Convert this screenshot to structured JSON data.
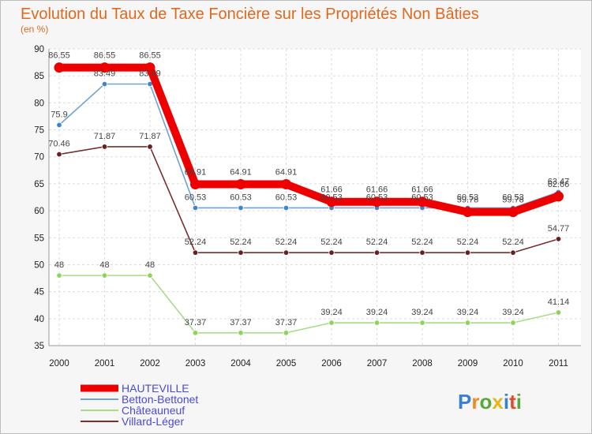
{
  "chart_data": {
    "type": "line",
    "title": "Evolution du Taux de Taxe Foncière sur les Propriétés Non Bâties",
    "subtitle": "(en %)",
    "x": [
      "2000",
      "2001",
      "2002",
      "2003",
      "2004",
      "2005",
      "2006",
      "2007",
      "2008",
      "2009",
      "2010",
      "2011"
    ],
    "ylim": [
      35,
      90
    ],
    "yticks": [
      35,
      40,
      45,
      50,
      55,
      60,
      65,
      70,
      75,
      80,
      85,
      90
    ],
    "grid": true,
    "legend_position": "bottom-left",
    "series": [
      {
        "name": "HAUTEVILLE",
        "color": "#ee0000",
        "marker_color": "#ee0000",
        "emphasis": "thick",
        "values": [
          86.55,
          86.55,
          86.55,
          64.91,
          64.91,
          64.91,
          61.66,
          61.66,
          61.66,
          59.78,
          59.78,
          62.66
        ],
        "labels": [
          "86.55",
          "86.55",
          "86.55",
          "64.91",
          "64.91",
          "64.91",
          "61.66",
          "61.66",
          "61.66",
          "59.78",
          "59.78",
          "62.66"
        ]
      },
      {
        "name": "Betton-Bettonet",
        "color": "#6fa3d2",
        "marker_color": "#3f86c8",
        "emphasis": "normal",
        "values": [
          75.9,
          83.49,
          83.49,
          60.53,
          60.53,
          60.53,
          60.53,
          60.53,
          60.53,
          60.53,
          60.53,
          63.47
        ],
        "labels": [
          "75.9",
          "83.49",
          "83.49",
          "60.53",
          "60.53",
          "60.53",
          "60.53",
          "60.53",
          "60.53",
          "60.53",
          "60.53",
          "63.47"
        ]
      },
      {
        "name": "Châteauneuf",
        "color": "#a8dc88",
        "marker_color": "#8fd45a",
        "emphasis": "normal",
        "values": [
          48,
          48,
          48,
          37.37,
          37.37,
          37.37,
          39.24,
          39.24,
          39.24,
          39.24,
          39.24,
          41.14
        ],
        "labels": [
          "48",
          "48",
          "48",
          "37.37",
          "37.37",
          "37.37",
          "39.24",
          "39.24",
          "39.24",
          "39.24",
          "39.24",
          "41.14"
        ]
      },
      {
        "name": "Villard-Léger",
        "color": "#7a2e2e",
        "marker_color": "#6a1e1e",
        "emphasis": "normal",
        "values": [
          70.46,
          71.87,
          71.87,
          52.24,
          52.24,
          52.24,
          52.24,
          52.24,
          52.24,
          52.24,
          52.24,
          54.77
        ],
        "labels": [
          "70.46",
          "71.87",
          "71.87",
          "52.24",
          "52.24",
          "52.24",
          "52.24",
          "52.24",
          "52.24",
          "52.24",
          "52.24",
          "54.77"
        ]
      }
    ]
  },
  "watermark": {
    "text": "Proxiti"
  }
}
